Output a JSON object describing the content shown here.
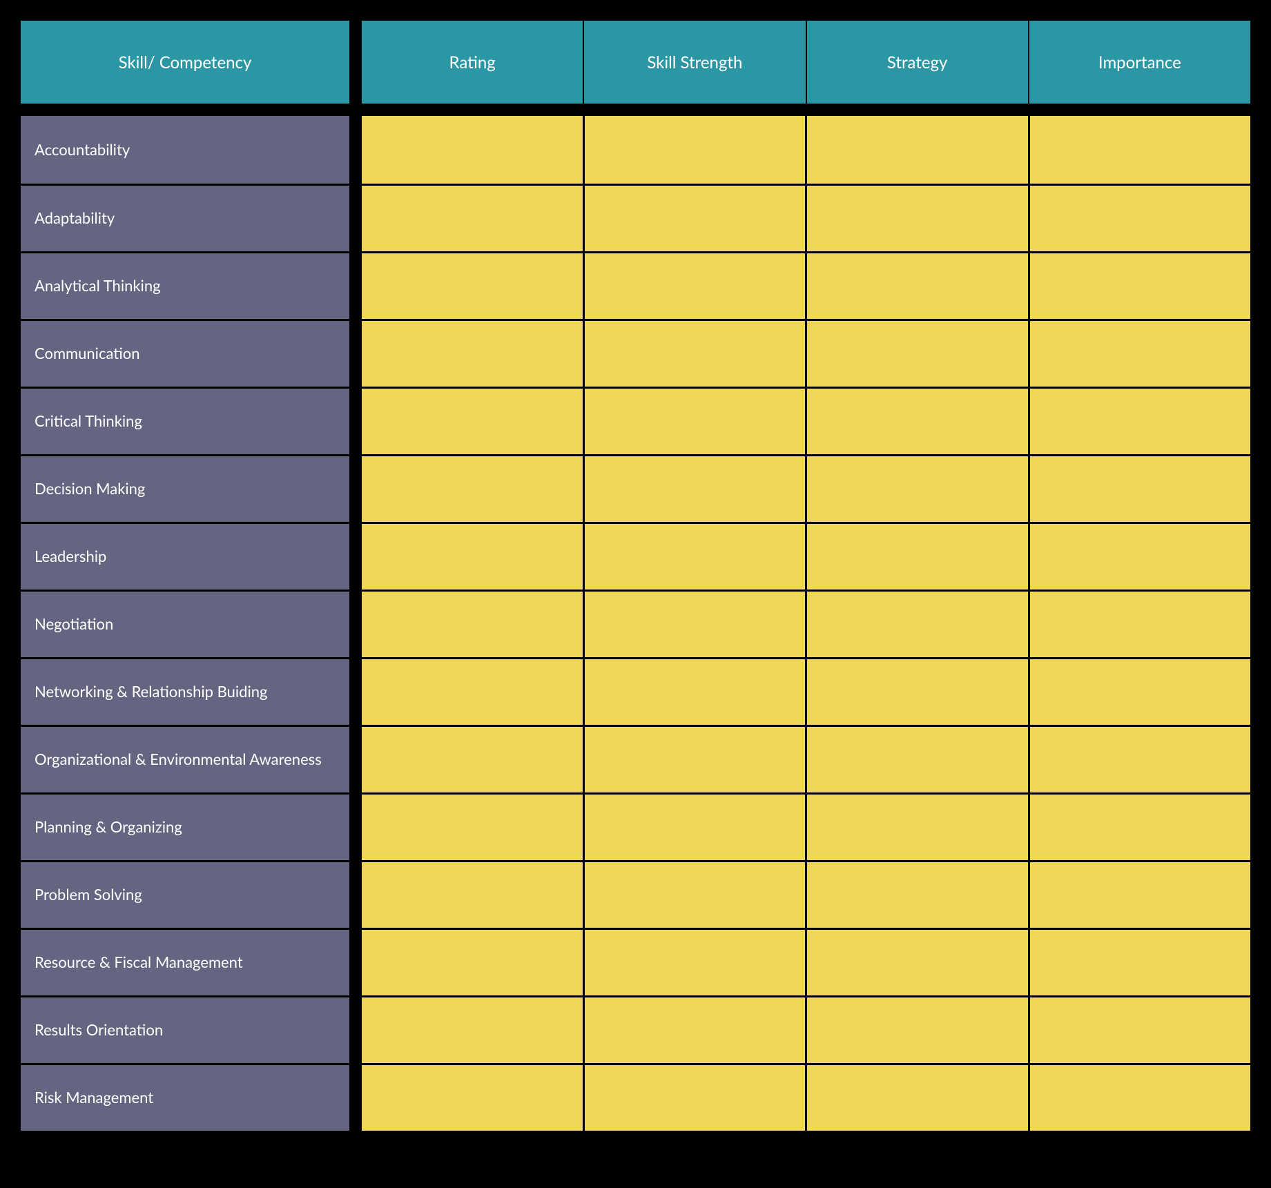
{
  "table": {
    "type": "table",
    "background_color": "#000000",
    "header": {
      "background_color": "#2b97a4",
      "text_color": "#ffffff",
      "font_size": 24,
      "columns": [
        "Skill/ Competency",
        "Rating",
        "Skill Strength",
        "Strategy",
        "Importance"
      ]
    },
    "row_label_style": {
      "background_color": "#656581",
      "text_color": "#ffffff",
      "font_size": 22
    },
    "data_cell_style": {
      "background_color": "#efd657",
      "border_color": "#000000",
      "border_width": 3
    },
    "rows": [
      {
        "label": "Accountability",
        "rating": "",
        "skill_strength": "",
        "strategy": "",
        "importance": ""
      },
      {
        "label": "Adaptability",
        "rating": "",
        "skill_strength": "",
        "strategy": "",
        "importance": ""
      },
      {
        "label": "Analytical Thinking",
        "rating": "",
        "skill_strength": "",
        "strategy": "",
        "importance": ""
      },
      {
        "label": "Communication",
        "rating": "",
        "skill_strength": "",
        "strategy": "",
        "importance": ""
      },
      {
        "label": "Critical Thinking",
        "rating": "",
        "skill_strength": "",
        "strategy": "",
        "importance": ""
      },
      {
        "label": "Decision Making",
        "rating": "",
        "skill_strength": "",
        "strategy": "",
        "importance": ""
      },
      {
        "label": "Leadership",
        "rating": "",
        "skill_strength": "",
        "strategy": "",
        "importance": ""
      },
      {
        "label": "Negotiation",
        "rating": "",
        "skill_strength": "",
        "strategy": "",
        "importance": ""
      },
      {
        "label": "Networking & Relationship Buiding",
        "rating": "",
        "skill_strength": "",
        "strategy": "",
        "importance": ""
      },
      {
        "label": "Organizational & Environmental Awareness",
        "rating": "",
        "skill_strength": "",
        "strategy": "",
        "importance": ""
      },
      {
        "label": "Planning & Organizing",
        "rating": "",
        "skill_strength": "",
        "strategy": "",
        "importance": ""
      },
      {
        "label": "Problem Solving",
        "rating": "",
        "skill_strength": "",
        "strategy": "",
        "importance": ""
      },
      {
        "label": "Resource & Fiscal Management",
        "rating": "",
        "skill_strength": "",
        "strategy": "",
        "importance": ""
      },
      {
        "label": "Results Orientation",
        "rating": "",
        "skill_strength": "",
        "strategy": "",
        "importance": ""
      },
      {
        "label": "Risk Management",
        "rating": "",
        "skill_strength": "",
        "strategy": "",
        "importance": ""
      }
    ]
  }
}
